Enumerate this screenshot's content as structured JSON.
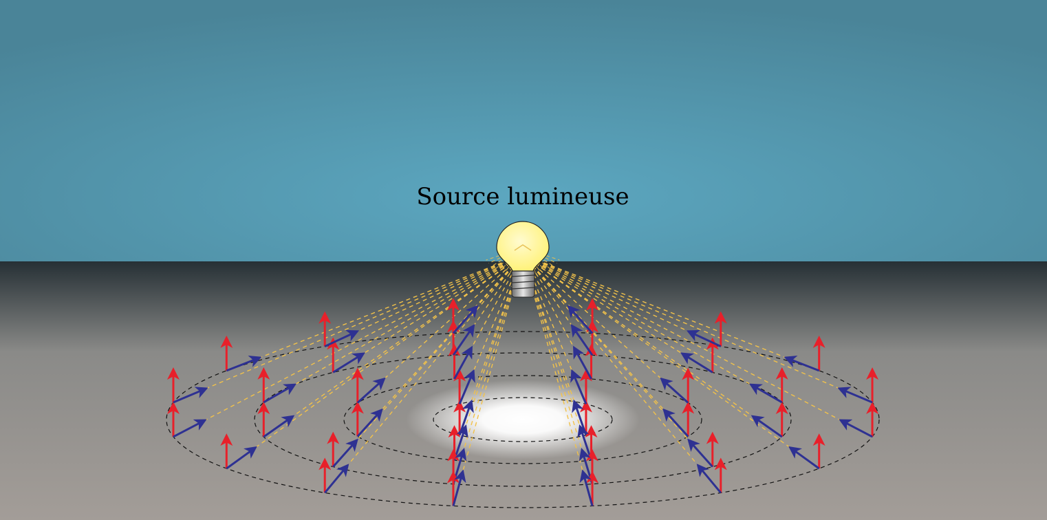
{
  "title": "Source lumineuse",
  "colors": {
    "sky_center": "#5ca7c0",
    "sky_edge": "#4a8498",
    "floor_top": "#263035",
    "floor_bottom": "#a39d98",
    "spot": "#ffffff",
    "bulb_glass": "#fff27a",
    "bulb_base": "#9c9c9c",
    "ray": "#f2c24a",
    "normal_vector": "#e8202a",
    "light_vector": "#2e3192",
    "ring": "#111111"
  },
  "icons": [
    "light-bulb-icon"
  ],
  "rings": [
    {
      "points": 4
    },
    {
      "points": 8
    },
    {
      "points": 12
    },
    {
      "points": 16
    }
  ]
}
